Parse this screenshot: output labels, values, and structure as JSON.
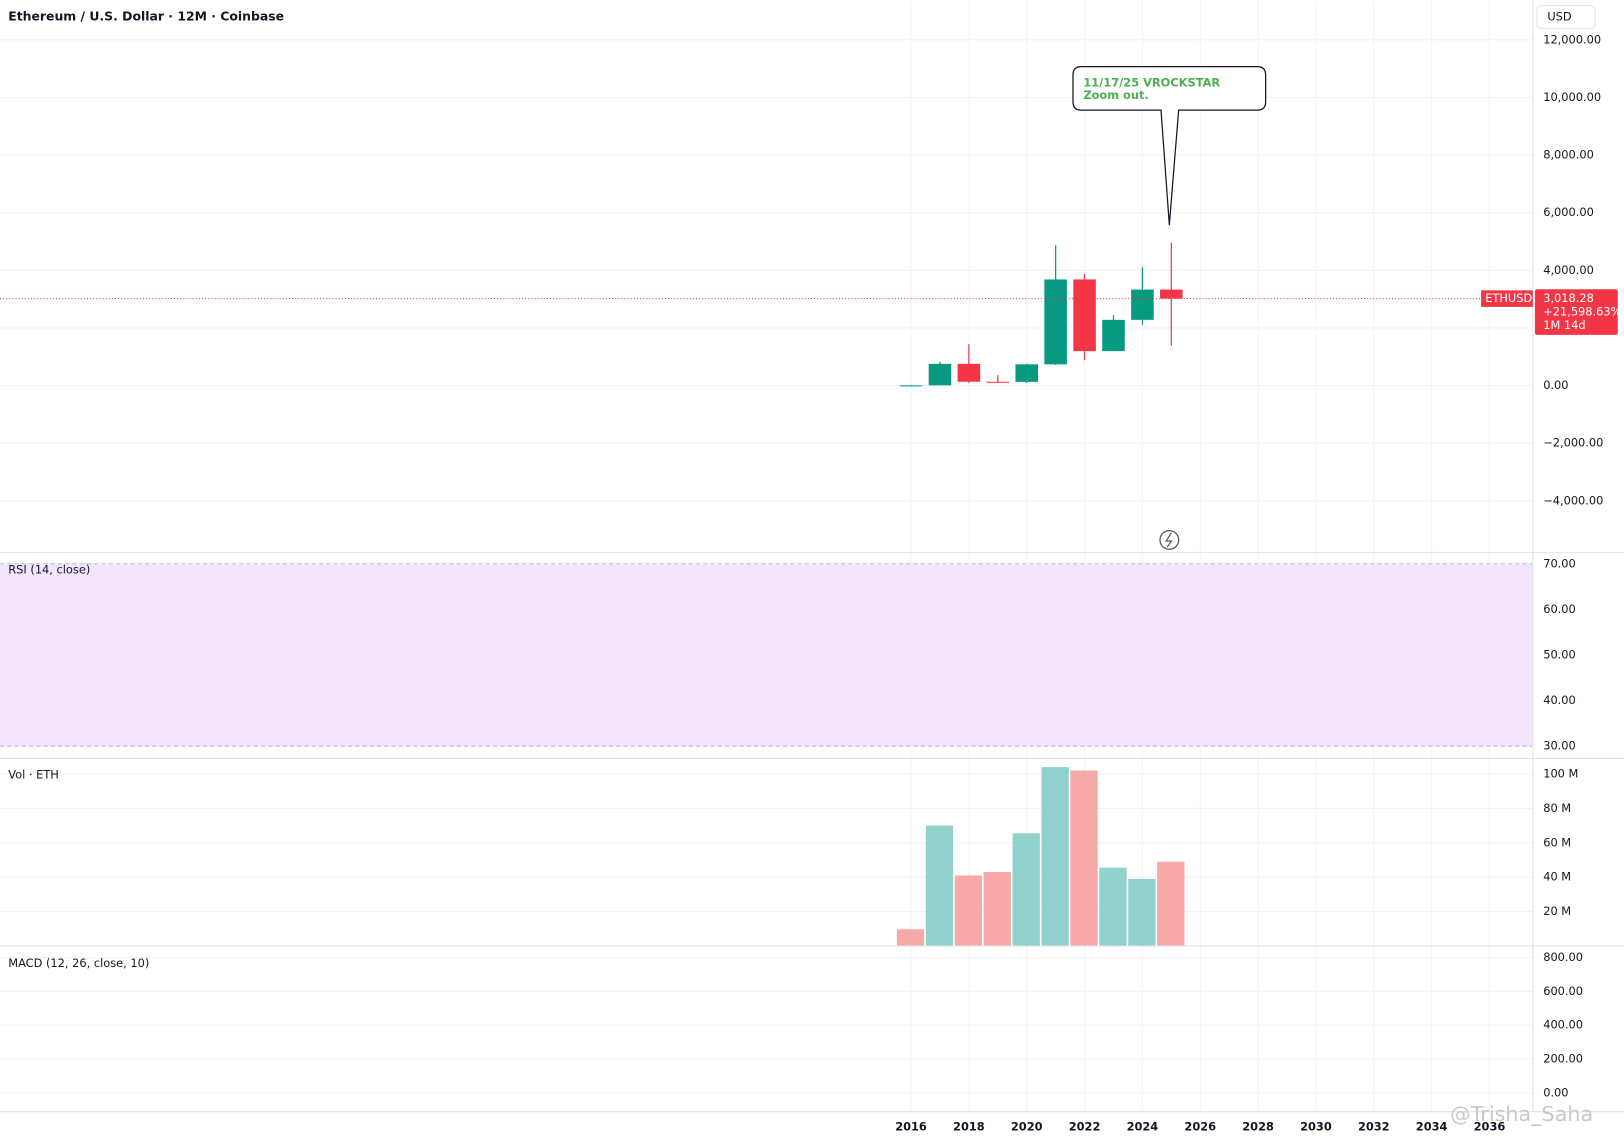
{
  "header": {
    "title": "Ethereum / U.S. Dollar · 12M · Coinbase",
    "currency": "USD",
    "watermark": "@Trisha_Saha"
  },
  "chart_data": [
    {
      "type": "candlestick",
      "pane": "price",
      "x": [
        2016,
        2017,
        2018,
        2019,
        2020,
        2021,
        2022,
        2023,
        2024,
        2025
      ],
      "open": [
        0.93,
        8,
        755,
        133,
        129,
        737,
        3683,
        1196,
        2281,
        3332
      ],
      "high": [
        21.5,
        830,
        1436,
        364,
        760,
        4868,
        3880,
        2445,
        4110,
        4956
      ],
      "low": [
        0.93,
        8,
        81,
        100,
        90,
        716,
        880,
        1196,
        2112,
        1385
      ],
      "close": [
        8,
        755,
        133,
        129,
        737,
        3683,
        1196,
        2281,
        3332,
        3018.28
      ],
      "up_color": "#089981",
      "down_color": "#f23645",
      "last_label": "3,018.28",
      "change_label": "+21,598.63%",
      "countdown": "1M 14d",
      "symbol": "ETHUSD",
      "annotation": [
        "11/17/25 VROCKSTAR",
        "Zoom out."
      ],
      "xlim": [
        1984.5,
        2037.5
      ],
      "xticks": [
        2016,
        2018,
        2020,
        2022,
        2024,
        2026,
        2028,
        2030,
        2032,
        2034,
        2036
      ],
      "ylim": [
        -5790,
        13370
      ],
      "yticks": [
        {
          "value": -4000,
          "label": "−4,000.00"
        },
        {
          "value": -2000,
          "label": "−2,000.00"
        },
        {
          "value": 0,
          "label": "0.00"
        },
        {
          "value": 2000,
          "label": "2,000.00"
        },
        {
          "value": 4000,
          "label": "4,000.00"
        },
        {
          "value": 6000,
          "label": "6,000.00"
        },
        {
          "value": 8000,
          "label": "8,000.00"
        },
        {
          "value": 10000,
          "label": "10,000.00"
        },
        {
          "value": 12000,
          "label": "12,000.00"
        }
      ],
      "grid": true
    },
    {
      "type": "line",
      "pane": "rsi",
      "title": "RSI (14, close)",
      "band_color": "#f3e5fd",
      "ylim": [
        27.3,
        72.5
      ],
      "yticks": [
        {
          "value": 30,
          "label": "30.00"
        },
        {
          "value": 40,
          "label": "40.00"
        },
        {
          "value": 50,
          "label": "50.00"
        },
        {
          "value": 60,
          "label": "60.00"
        },
        {
          "value": 70,
          "label": "70.00"
        }
      ],
      "grid": true
    },
    {
      "type": "bar",
      "pane": "volume",
      "title": "Vol · ETH",
      "x": [
        2016,
        2017,
        2018,
        2019,
        2020,
        2021,
        2022,
        2023,
        2024,
        2025
      ],
      "values": [
        9.7,
        70,
        41,
        43,
        65.5,
        104,
        102,
        45.5,
        39,
        49
      ],
      "colors": [
        "#f7a9a7",
        "#92d2cc",
        "#f7a9a7",
        "#f7a9a7",
        "#92d2cc",
        "#92d2cc",
        "#f7a9a7",
        "#92d2cc",
        "#92d2cc",
        "#f7a9a7"
      ],
      "ylim": [
        0,
        109
      ],
      "yticks": [
        {
          "value": 20,
          "label": "20 M"
        },
        {
          "value": 40,
          "label": "40 M"
        },
        {
          "value": 60,
          "label": "60 M"
        },
        {
          "value": 80,
          "label": "80 M"
        },
        {
          "value": 100,
          "label": "100 M"
        }
      ],
      "grid": true
    },
    {
      "type": "line",
      "pane": "macd",
      "title": "MACD (12, 26, close, 10)",
      "ylim": [
        -111,
        868
      ],
      "yticks": [
        {
          "value": 0,
          "label": "0.00"
        },
        {
          "value": 200,
          "label": "200.00"
        },
        {
          "value": 400,
          "label": "400.00"
        },
        {
          "value": 600,
          "label": "600.00"
        },
        {
          "value": 800,
          "label": "800.00"
        }
      ],
      "grid": true
    }
  ]
}
